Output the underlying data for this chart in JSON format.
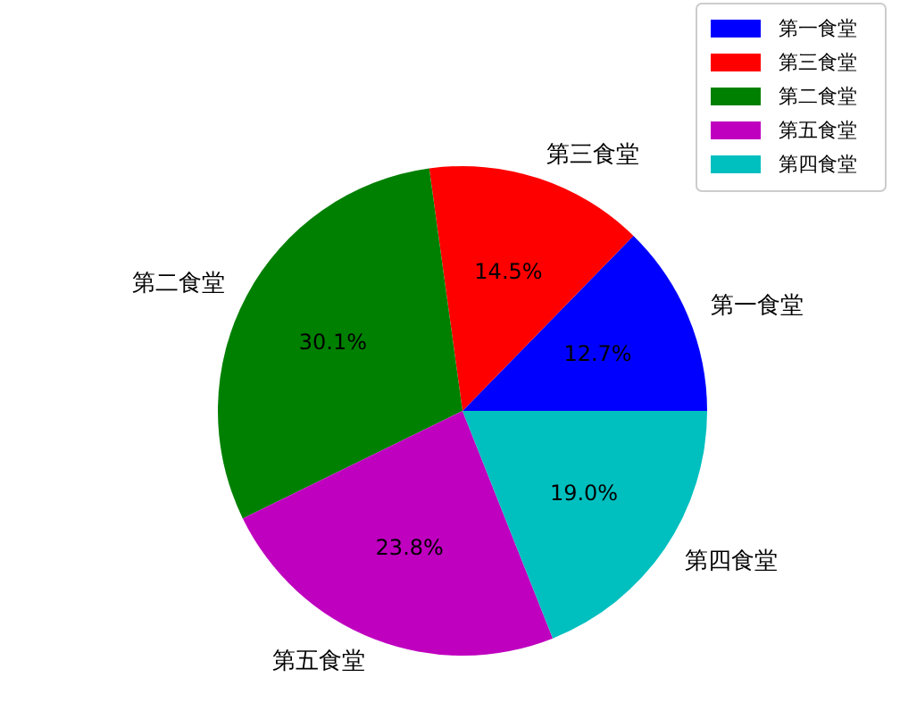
{
  "chart_data": {
    "type": "pie",
    "categories": [
      "第一食堂",
      "第三食堂",
      "第二食堂",
      "第五食堂",
      "第四食堂"
    ],
    "values": [
      12.7,
      14.5,
      30.1,
      23.8,
      19.0
    ],
    "colors": [
      "#0000ff",
      "#ff0000",
      "#008000",
      "#bf00bf",
      "#00bfbf"
    ],
    "value_labels": [
      "12.7%",
      "14.5%",
      "30.1%",
      "23.8%",
      "19.0%"
    ],
    "legend": "top right"
  }
}
